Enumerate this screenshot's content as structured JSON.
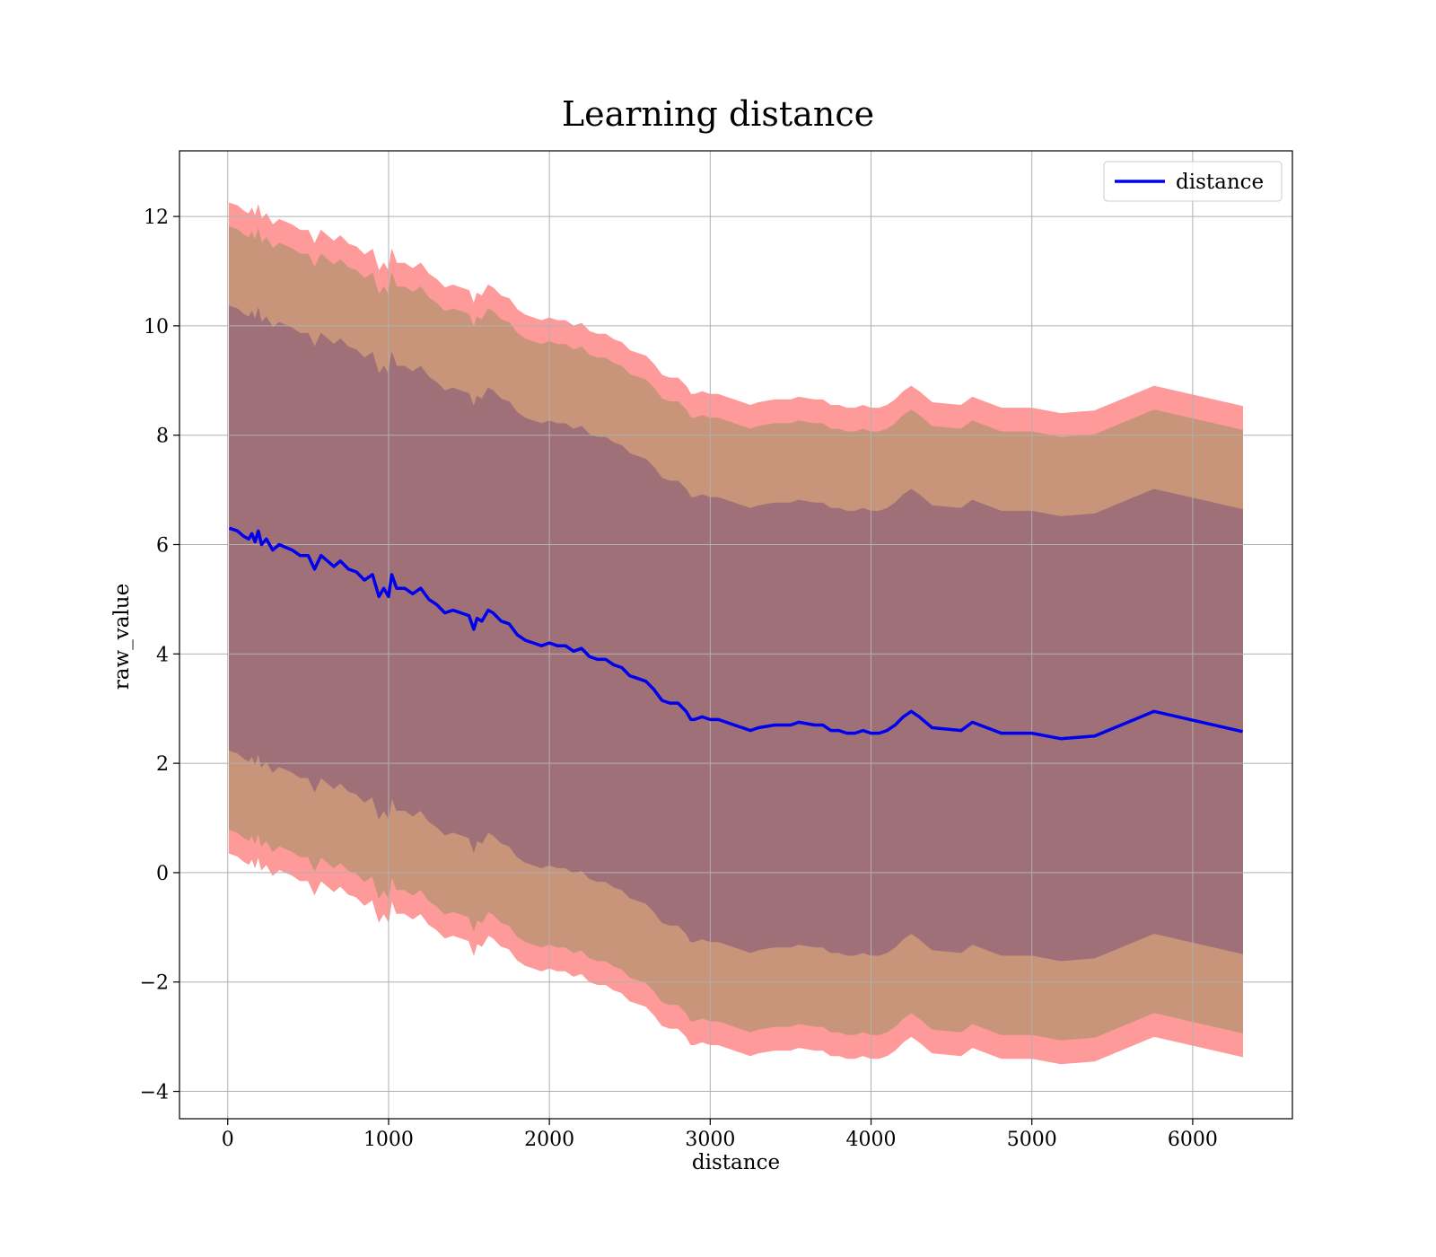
{
  "chart_data": {
    "type": "line",
    "title": "Learning distance",
    "xlabel": "distance",
    "ylabel": "raw_value",
    "xlim": [
      -300,
      6620
    ],
    "ylim": [
      -4.5,
      13.2
    ],
    "xticks": [
      0,
      1000,
      2000,
      3000,
      4000,
      5000,
      6000
    ],
    "yticks": [
      -4,
      -2,
      0,
      2,
      4,
      6,
      8,
      10,
      12
    ],
    "xtick_labels": [
      "0",
      "1000",
      "2000",
      "3000",
      "4000",
      "5000",
      "6000"
    ],
    "ytick_labels": [
      "−4",
      "−2",
      "0",
      "2",
      "4",
      "6",
      "8",
      "10",
      "12"
    ],
    "grid": true,
    "legend": {
      "position": "top-right",
      "entries": [
        "distance"
      ]
    },
    "colors": {
      "line": "#0000ee",
      "band_outer": "#ff9a9a",
      "band_middle": "#c8957a",
      "band_inner": "#a07078",
      "grid": "#b0b0b0"
    },
    "series": [
      {
        "name": "distance",
        "x": [
          10,
          60,
          100,
          130,
          150,
          170,
          190,
          210,
          240,
          280,
          320,
          360,
          400,
          450,
          500,
          540,
          580,
          620,
          660,
          700,
          750,
          800,
          850,
          900,
          940,
          970,
          1000,
          1020,
          1050,
          1100,
          1150,
          1200,
          1250,
          1300,
          1350,
          1400,
          1450,
          1500,
          1530,
          1550,
          1580,
          1620,
          1650,
          1700,
          1750,
          1800,
          1850,
          1900,
          1950,
          2000,
          2050,
          2100,
          2150,
          2200,
          2250,
          2300,
          2350,
          2400,
          2450,
          2500,
          2550,
          2600,
          2650,
          2700,
          2750,
          2800,
          2850,
          2880,
          2900,
          2950,
          3000,
          3050,
          3100,
          3150,
          3200,
          3250,
          3300,
          3400,
          3500,
          3550,
          3650,
          3700,
          3750,
          3800,
          3850,
          3900,
          3950,
          4000,
          4050,
          4100,
          4150,
          4200,
          4250,
          4300,
          4380,
          4560,
          4630,
          4810,
          5000,
          5180,
          5390,
          5760,
          6310
        ],
        "values": [
          6.3,
          6.25,
          6.15,
          6.1,
          6.2,
          6.05,
          6.25,
          6.0,
          6.1,
          5.9,
          6.0,
          5.95,
          5.9,
          5.8,
          5.8,
          5.55,
          5.8,
          5.7,
          5.6,
          5.7,
          5.55,
          5.5,
          5.35,
          5.45,
          5.05,
          5.2,
          5.05,
          5.45,
          5.2,
          5.2,
          5.1,
          5.2,
          5.0,
          4.9,
          4.75,
          4.8,
          4.75,
          4.7,
          4.45,
          4.65,
          4.6,
          4.8,
          4.75,
          4.6,
          4.55,
          4.35,
          4.25,
          4.2,
          4.15,
          4.2,
          4.15,
          4.15,
          4.05,
          4.1,
          3.95,
          3.9,
          3.9,
          3.8,
          3.75,
          3.6,
          3.55,
          3.5,
          3.35,
          3.15,
          3.1,
          3.1,
          2.95,
          2.8,
          2.8,
          2.85,
          2.8,
          2.8,
          2.75,
          2.7,
          2.65,
          2.6,
          2.65,
          2.7,
          2.7,
          2.75,
          2.7,
          2.7,
          2.6,
          2.6,
          2.55,
          2.55,
          2.6,
          2.55,
          2.55,
          2.6,
          2.7,
          2.85,
          2.95,
          2.85,
          2.65,
          2.6,
          2.75,
          2.55,
          2.55,
          2.45,
          2.5,
          2.95,
          2.58
        ]
      }
    ],
    "bands": [
      {
        "sigma": 1.4,
        "color_role": "band_inner"
      },
      {
        "sigma": 1.9,
        "color_role": "band_middle"
      },
      {
        "sigma": 2.05,
        "color_role": "band_outer"
      }
    ]
  }
}
